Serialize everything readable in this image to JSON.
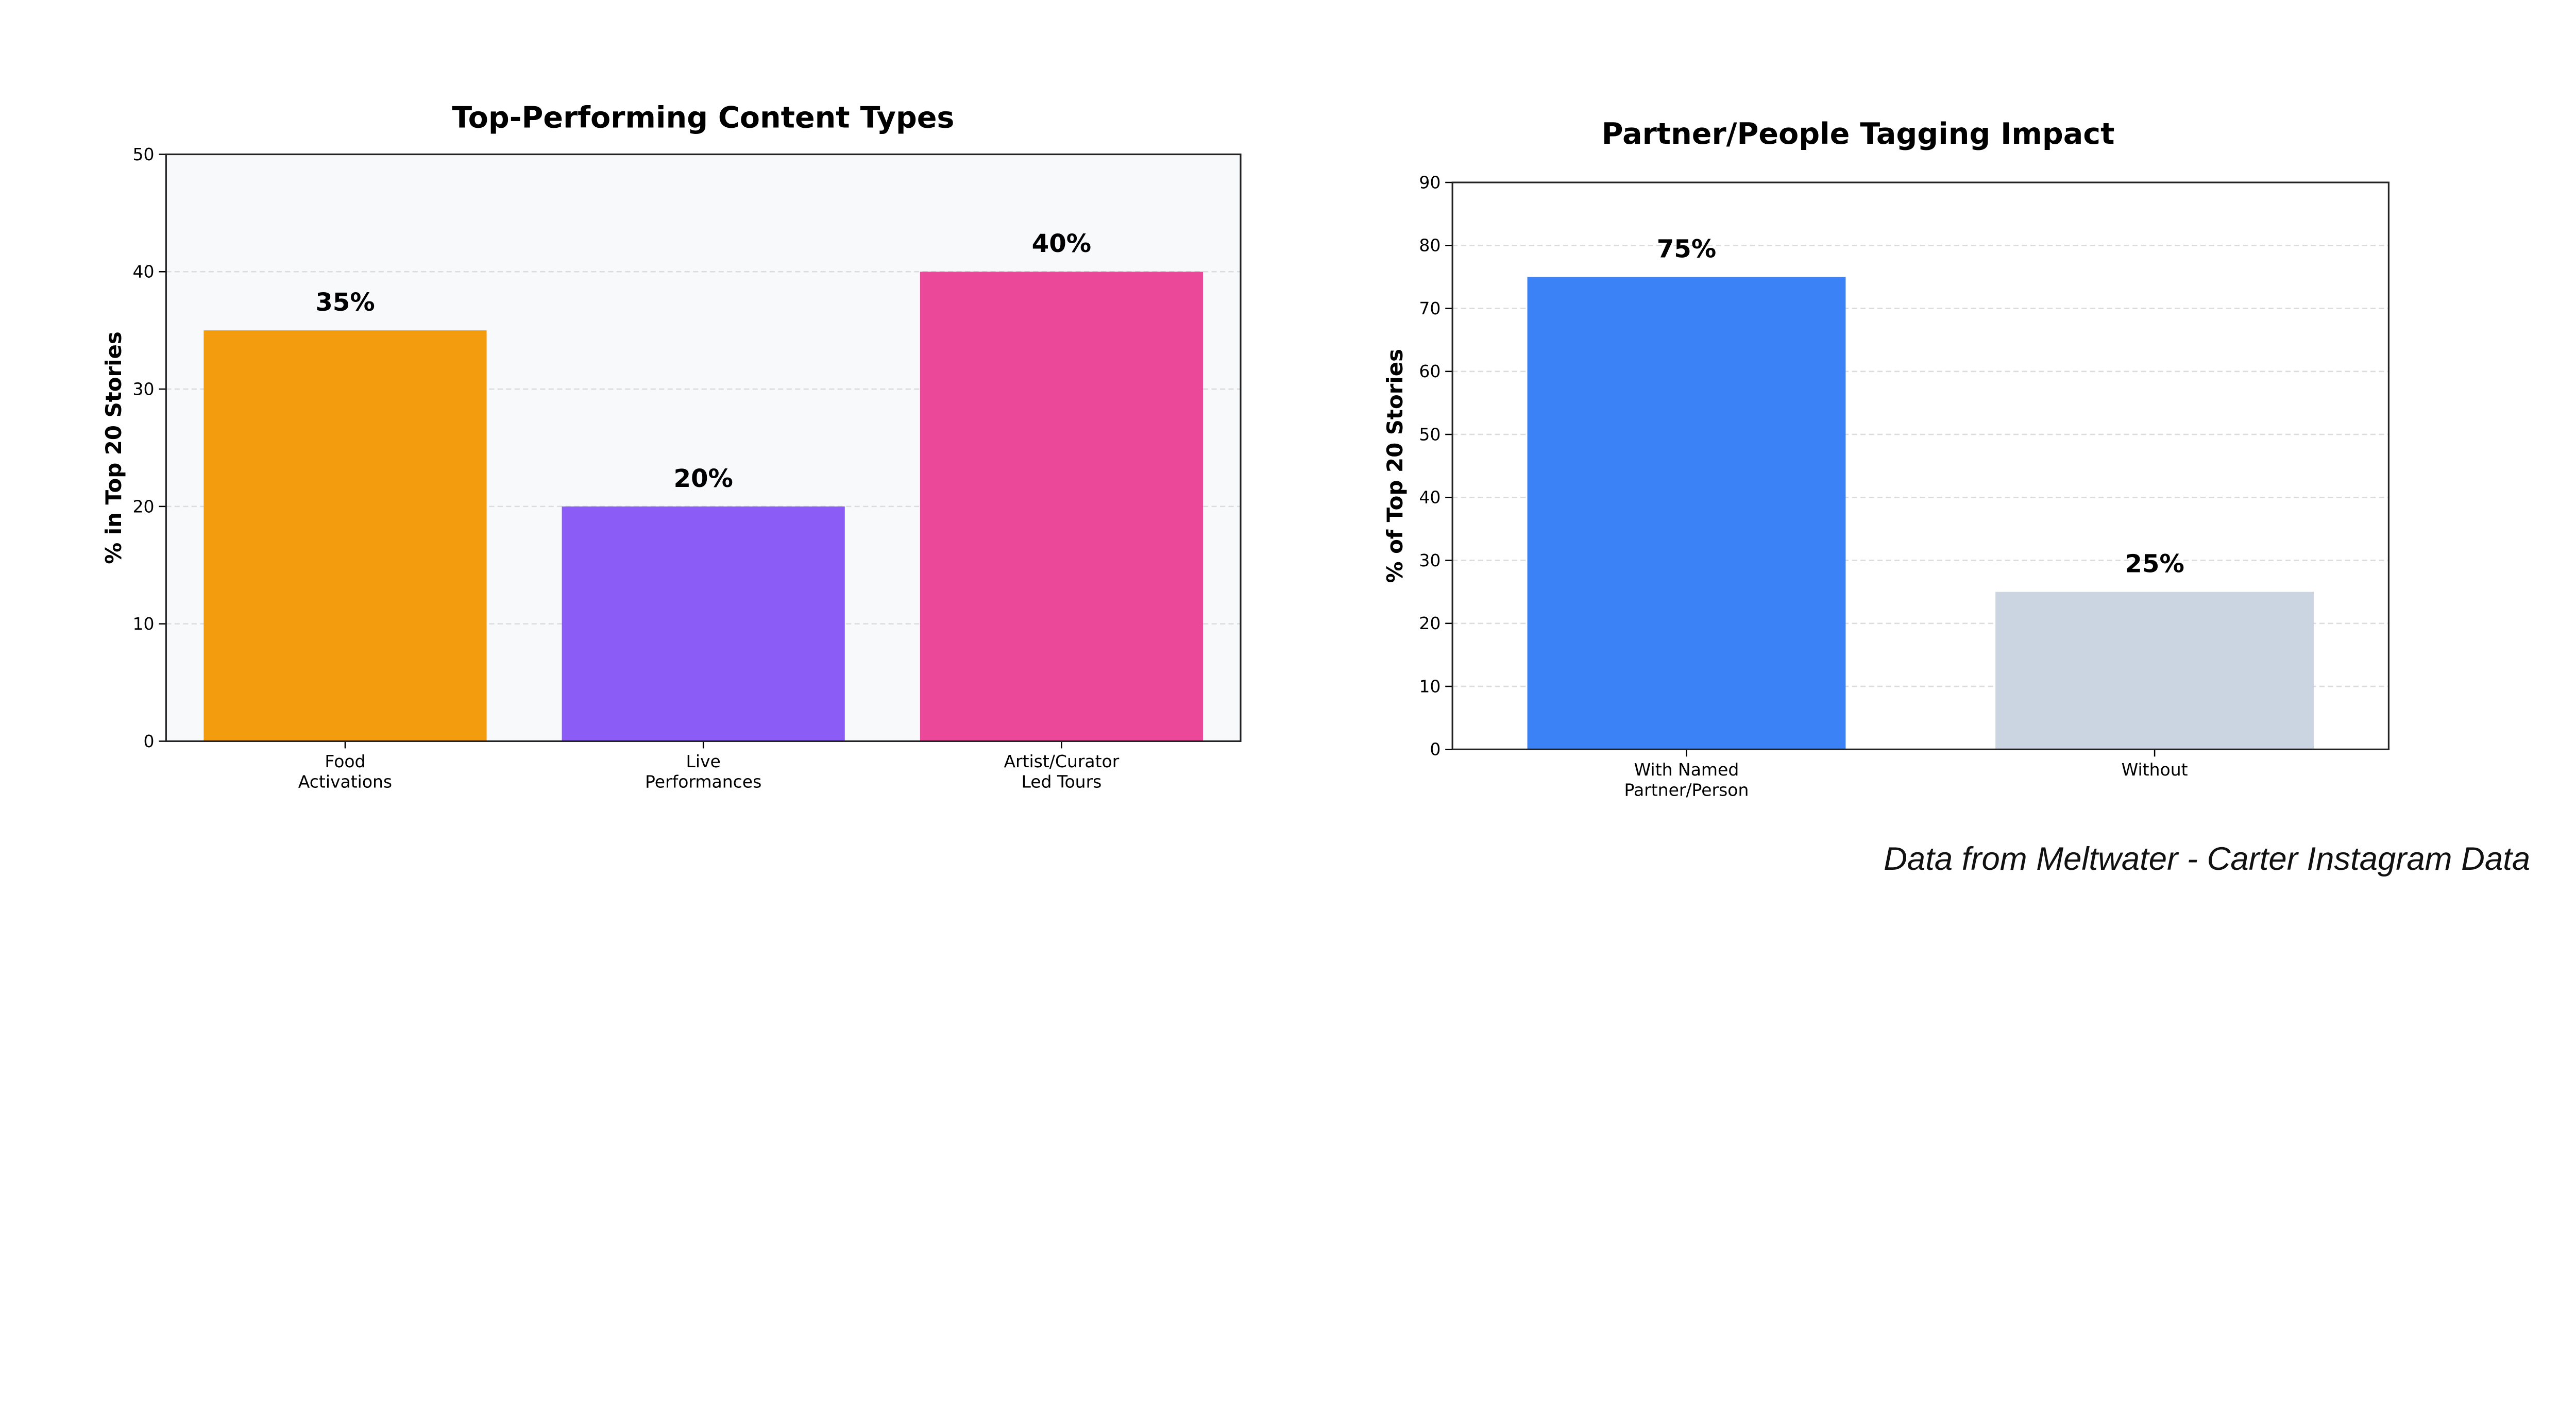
{
  "chart_data": [
    {
      "type": "bar",
      "title": "Top-Performing Content Types",
      "xlabel": "",
      "ylabel": "% in Top 20 Stories",
      "categories": [
        [
          "Food",
          "Activations"
        ],
        [
          "Live",
          "Performances"
        ],
        [
          "Artist/Curator",
          "Led Tours"
        ]
      ],
      "values": [
        35,
        20,
        40
      ],
      "value_labels": [
        "35%",
        "20%",
        "40%"
      ],
      "colors": [
        "#f39c0e",
        "#8b5cf6",
        "#ec4899"
      ],
      "ylim": [
        0,
        50
      ],
      "yticks": [
        0,
        10,
        20,
        30,
        40,
        50
      ],
      "grid": true,
      "plot_background": "#f8f9fb"
    },
    {
      "type": "bar",
      "title": "Partner/People Tagging Impact",
      "xlabel": "",
      "ylabel": "% of Top 20 Stories",
      "categories": [
        [
          "With Named",
          "Partner/Person"
        ],
        [
          "Without"
        ]
      ],
      "values": [
        75,
        25
      ],
      "value_labels": [
        "75%",
        "25%"
      ],
      "colors": [
        "#3b82f6",
        "#cbd5e1"
      ],
      "ylim": [
        0,
        90
      ],
      "yticks": [
        0,
        10,
        20,
        30,
        40,
        50,
        60,
        70,
        80,
        90
      ],
      "grid": true,
      "plot_background": "#ffffff"
    }
  ],
  "footnote": "Data from Meltwater - Carter Instagram Data"
}
